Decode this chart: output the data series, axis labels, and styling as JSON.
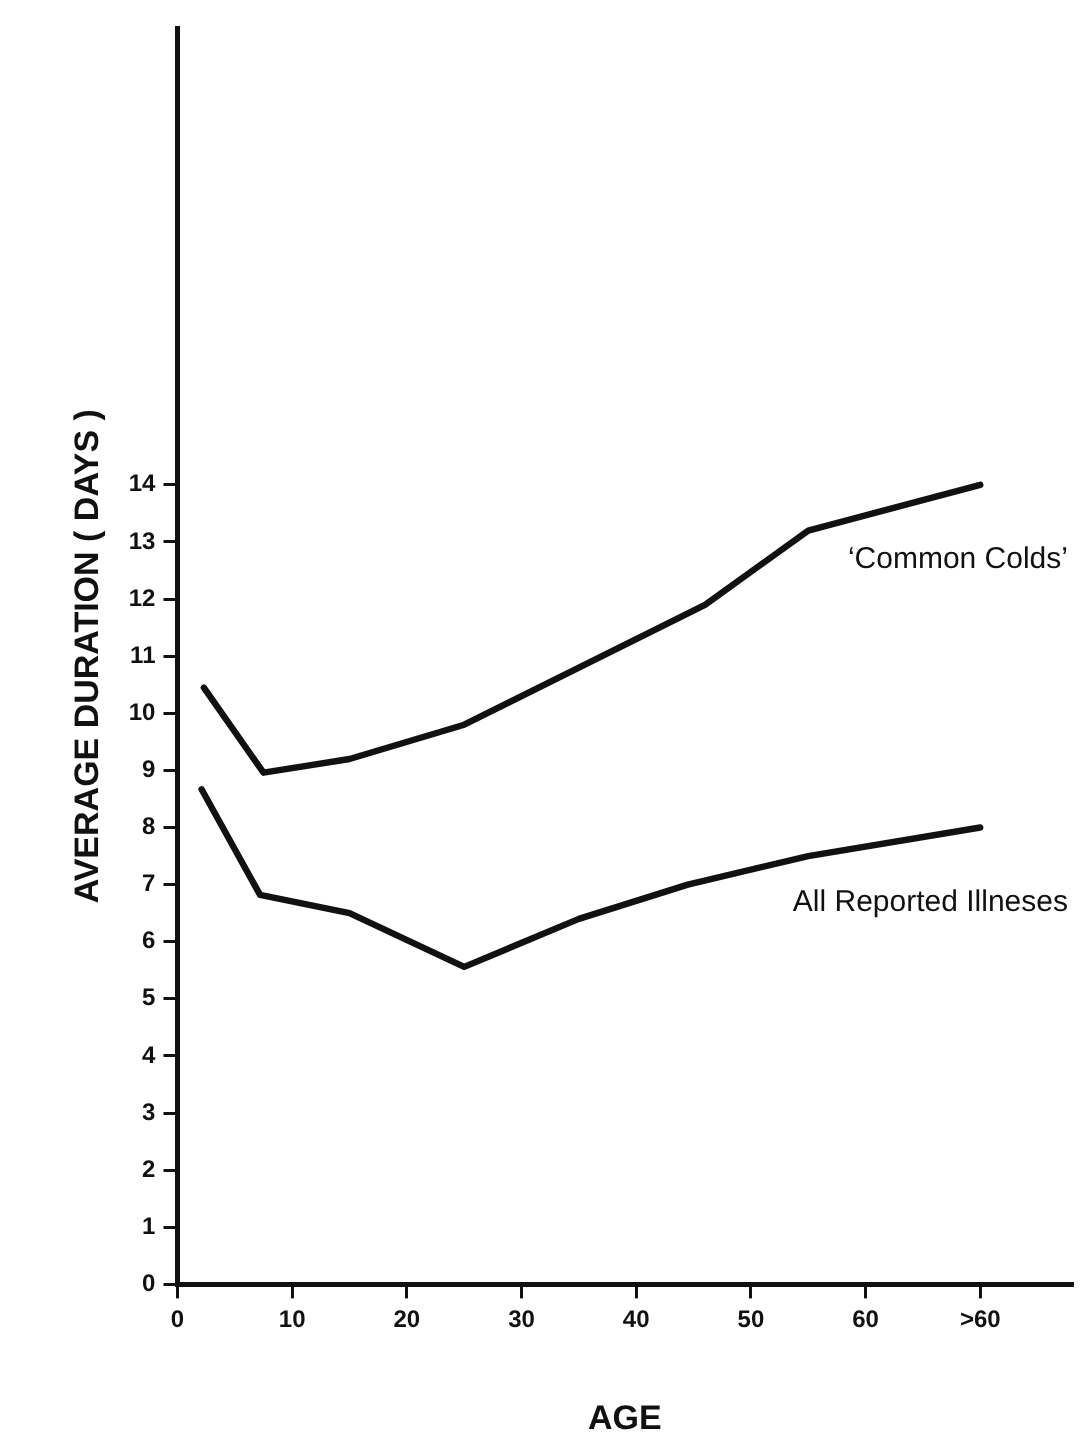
{
  "chart_data": {
    "type": "line",
    "xlabel": "AGE",
    "ylabel": "AVERAGE DURATION ( DAYS )",
    "xlim": [
      0,
      78
    ],
    "ylim": [
      0,
      22
    ],
    "xticks": [
      0,
      10,
      20,
      30,
      40,
      50,
      60,
      {
        "value": 70,
        "label": ">60"
      }
    ],
    "yticks": [
      0,
      1,
      2,
      3,
      4,
      5,
      6,
      7,
      8,
      9,
      10,
      11,
      12,
      13,
      14
    ],
    "grid": false,
    "legend": false,
    "marker": "none",
    "line_style": "solid",
    "series": [
      {
        "name": "‘Common Colds’",
        "color": "#111111",
        "x": [
          2.3,
          7.5,
          15,
          25,
          35,
          46,
          55,
          70
        ],
        "values": [
          10.45,
          8.96,
          9.2,
          9.8,
          10.8,
          11.9,
          13.2,
          14.0
        ]
      },
      {
        "name": "All Reported Illneses",
        "color": "#111111",
        "x": [
          2.1,
          7.2,
          15,
          25,
          35,
          44.5,
          55,
          70
        ],
        "values": [
          8.67,
          6.82,
          6.5,
          5.56,
          6.4,
          7.0,
          7.5,
          8.0
        ]
      }
    ]
  }
}
